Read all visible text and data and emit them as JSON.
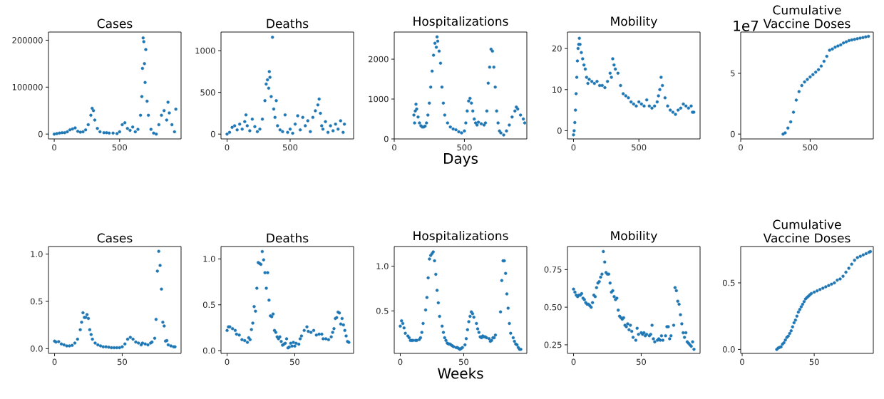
{
  "chart_data": [
    {
      "type": "scatter",
      "title": "Cases",
      "color": "#1f77b4",
      "marker": "circle",
      "xlim": [
        -44,
        970
      ],
      "ylim": [
        -10350,
        217350
      ],
      "xticks": [
        0,
        500
      ],
      "yticks": [
        0,
        100000,
        200000
      ],
      "x": [
        0,
        20,
        40,
        60,
        80,
        100,
        120,
        140,
        160,
        180,
        200,
        220,
        240,
        260,
        280,
        290,
        300,
        310,
        330,
        350,
        380,
        400,
        420,
        450,
        480,
        500,
        520,
        540,
        560,
        580,
        600,
        620,
        640,
        660,
        670,
        675,
        680,
        685,
        690,
        695,
        700,
        710,
        720,
        740,
        760,
        780,
        800,
        820,
        840,
        860,
        870,
        880,
        900,
        920,
        930
      ],
      "values": [
        0,
        1000,
        2000,
        3000,
        3000,
        5000,
        9000,
        11000,
        13000,
        6000,
        4000,
        5000,
        9000,
        20000,
        40000,
        55000,
        50000,
        30000,
        12000,
        5000,
        3000,
        3000,
        2000,
        2000,
        1000,
        5000,
        20000,
        24000,
        12000,
        8000,
        15000,
        5000,
        10000,
        40000,
        80000,
        140000,
        205000,
        197000,
        150000,
        110000,
        180000,
        70000,
        40000,
        10000,
        2000,
        0,
        20000,
        40000,
        50000,
        30000,
        68000,
        45000,
        20000,
        5000,
        53000
      ]
    },
    {
      "type": "scatter",
      "title": "Deaths",
      "color": "#1f77b4",
      "marker": "circle",
      "xlim": [
        -48,
        1003
      ],
      "ylim": [
        -58,
        1223
      ],
      "xticks": [
        0,
        500
      ],
      "yticks": [
        0,
        500,
        1000
      ],
      "x": [
        0,
        20,
        40,
        60,
        80,
        100,
        120,
        140,
        150,
        160,
        180,
        200,
        220,
        240,
        260,
        280,
        300,
        310,
        320,
        330,
        335,
        340,
        350,
        360,
        370,
        380,
        390,
        400,
        420,
        440,
        460,
        480,
        500,
        520,
        540,
        560,
        580,
        600,
        620,
        640,
        660,
        680,
        700,
        720,
        730,
        740,
        750,
        760,
        780,
        800,
        820,
        840,
        860,
        880,
        900,
        920,
        930
      ],
      "values": [
        0,
        20,
        80,
        100,
        50,
        120,
        60,
        150,
        230,
        100,
        40,
        180,
        90,
        30,
        60,
        180,
        400,
        600,
        650,
        550,
        750,
        680,
        450,
        1160,
        300,
        200,
        400,
        100,
        50,
        30,
        230,
        20,
        60,
        10,
        120,
        220,
        50,
        200,
        100,
        160,
        30,
        200,
        280,
        350,
        420,
        250,
        100,
        60,
        150,
        20,
        100,
        40,
        120,
        60,
        160,
        20,
        120
      ]
    },
    {
      "type": "scatter",
      "title": "Hospitalizations",
      "xlabel": "Days",
      "color": "#1f77b4",
      "marker": "circle",
      "xlim": [
        0,
        945
      ],
      "ylim": [
        0,
        2680
      ],
      "xticks": [
        0,
        500
      ],
      "yticks": [
        0,
        1000,
        2000
      ],
      "x": [
        140,
        145,
        150,
        155,
        160,
        170,
        180,
        190,
        200,
        210,
        220,
        230,
        240,
        250,
        260,
        270,
        280,
        290,
        300,
        305,
        310,
        320,
        330,
        340,
        350,
        360,
        380,
        400,
        420,
        440,
        460,
        480,
        500,
        510,
        520,
        530,
        540,
        550,
        560,
        570,
        580,
        590,
        600,
        620,
        640,
        650,
        660,
        670,
        680,
        690,
        700,
        710,
        720,
        730,
        740,
        750,
        760,
        780,
        800,
        820,
        840,
        860,
        870,
        880,
        900,
        920,
        930
      ],
      "values": [
        600,
        400,
        700,
        870,
        750,
        550,
        400,
        330,
        300,
        300,
        320,
        400,
        600,
        900,
        1300,
        1700,
        2100,
        2400,
        2300,
        2560,
        2450,
        2200,
        1900,
        1300,
        900,
        600,
        400,
        300,
        250,
        230,
        180,
        150,
        200,
        400,
        700,
        950,
        1020,
        900,
        700,
        500,
        400,
        350,
        420,
        380,
        350,
        400,
        700,
        1400,
        1800,
        2250,
        2200,
        1800,
        1300,
        700,
        400,
        200,
        150,
        100,
        200,
        350,
        550,
        700,
        800,
        750,
        600,
        500,
        400
      ]
    },
    {
      "type": "scatter",
      "title": "Mobility",
      "color": "#1f77b4",
      "marker": "circle",
      "xlim": [
        -46,
        968
      ],
      "ylim": [
        -2,
        24
      ],
      "xticks": [
        0,
        500
      ],
      "yticks": [
        0,
        10,
        20
      ],
      "x": [
        0,
        5,
        10,
        15,
        20,
        25,
        30,
        35,
        40,
        45,
        50,
        60,
        70,
        80,
        90,
        100,
        110,
        120,
        140,
        160,
        180,
        200,
        220,
        240,
        260,
        280,
        290,
        300,
        310,
        320,
        340,
        360,
        380,
        400,
        420,
        440,
        460,
        480,
        500,
        520,
        540,
        560,
        580,
        600,
        620,
        640,
        650,
        660,
        670,
        680,
        700,
        720,
        740,
        760,
        780,
        800,
        820,
        840,
        860,
        880,
        900,
        910,
        920
      ],
      "values": [
        -1,
        0,
        2,
        5,
        9,
        13,
        17,
        20,
        21,
        22.5,
        21,
        19,
        17.5,
        16,
        15,
        13,
        11.5,
        12.5,
        12,
        11.5,
        12,
        11,
        11,
        10.5,
        12,
        14,
        13,
        17.5,
        16,
        15,
        14,
        11,
        9,
        8.5,
        8,
        7,
        6.5,
        6,
        7,
        6.5,
        6,
        7.5,
        6,
        5.5,
        6,
        7,
        8.5,
        10,
        13,
        11,
        8,
        6,
        5,
        4.5,
        4,
        5,
        5.5,
        6.5,
        6,
        5.5,
        6,
        4.5,
        4.5
      ]
    },
    {
      "type": "scatter",
      "title": "Cumulative Vaccine Doses",
      "annotations": [
        "1e7"
      ],
      "color": "#1f77b4",
      "marker": "circle",
      "xlim": [
        0,
        955
      ],
      "ylim": [
        -0.4,
        8.4
      ],
      "xticks": [
        0,
        500
      ],
      "yticks": [
        0,
        5
      ],
      "x": [
        305,
        320,
        340,
        360,
        380,
        400,
        420,
        440,
        460,
        480,
        500,
        520,
        540,
        560,
        580,
        600,
        620,
        640,
        660,
        680,
        700,
        720,
        740,
        760,
        780,
        800,
        820,
        840,
        860,
        880,
        900,
        920
      ],
      "values": [
        0,
        0.1,
        0.5,
        1.0,
        1.8,
        2.8,
        3.5,
        4.0,
        4.3,
        4.5,
        4.7,
        4.9,
        5.1,
        5.3,
        5.6,
        6.0,
        6.4,
        6.9,
        7.0,
        7.15,
        7.25,
        7.35,
        7.5,
        7.6,
        7.7,
        7.75,
        7.8,
        7.85,
        7.9,
        7.95,
        8.0,
        8.05
      ]
    },
    {
      "type": "scatter",
      "title": "Cases",
      "color": "#1f77b4",
      "marker": "circle",
      "xlim": [
        -4.5,
        93.5
      ],
      "ylim": [
        -0.05,
        1.08
      ],
      "xticks": [
        0,
        50
      ],
      "yticks": [
        {
          "value": 0,
          "label": "0.0"
        },
        0.5,
        {
          "value": 1,
          "label": "1.0"
        }
      ],
      "x": [
        0,
        1,
        3,
        5,
        7,
        9,
        11,
        13,
        15,
        17,
        19,
        20,
        21,
        22,
        23,
        24,
        25,
        26,
        27,
        28,
        30,
        32,
        34,
        36,
        38,
        40,
        42,
        44,
        46,
        48,
        50,
        52,
        54,
        56,
        58,
        60,
        62,
        64,
        65,
        67,
        69,
        71,
        72,
        74,
        75,
        76,
        77,
        78,
        79,
        80,
        81,
        82,
        83,
        84,
        86,
        88,
        89
      ],
      "values": [
        0.08,
        0.07,
        0.075,
        0.05,
        0.04,
        0.03,
        0.03,
        0.035,
        0.06,
        0.1,
        0.2,
        0.28,
        0.38,
        0.33,
        0.33,
        0.36,
        0.32,
        0.2,
        0.15,
        0.1,
        0.06,
        0.04,
        0.03,
        0.02,
        0.02,
        0.015,
        0.01,
        0.01,
        0.01,
        0.01,
        0.02,
        0.05,
        0.1,
        0.12,
        0.1,
        0.07,
        0.06,
        0.04,
        0.06,
        0.05,
        0.04,
        0.06,
        0.07,
        0.11,
        0.31,
        0.82,
        1.03,
        0.88,
        0.63,
        0.28,
        0.24,
        0.08,
        0.085,
        0.04,
        0.03,
        0.02,
        0.02
      ]
    },
    {
      "type": "scatter",
      "title": "Deaths",
      "color": "#1f77b4",
      "marker": "circle",
      "xlim": [
        -4.5,
        93.5
      ],
      "ylim": [
        -0.03,
        1.135
      ],
      "xticks": [
        0,
        50
      ],
      "yticks": [
        {
          "value": 0,
          "label": "0.0"
        },
        0.5,
        {
          "value": 1,
          "label": "1.0"
        }
      ],
      "x": [
        0,
        1,
        2,
        4,
        6,
        7,
        9,
        11,
        13,
        15,
        16,
        17,
        18,
        19,
        20,
        21,
        22,
        23,
        24,
        25,
        26,
        27,
        28,
        29,
        30,
        31,
        32,
        33,
        34,
        35,
        36,
        37,
        38,
        39,
        40,
        41,
        42,
        43,
        44,
        45,
        46,
        47,
        48,
        49,
        50,
        51,
        53,
        54,
        55,
        57,
        59,
        60,
        62,
        64,
        66,
        68,
        70,
        71,
        73,
        75,
        77,
        78,
        79,
        80,
        81,
        82,
        83,
        84,
        85,
        86,
        87,
        88,
        89,
        90
      ],
      "values": [
        0.22,
        0.26,
        0.26,
        0.24,
        0.22,
        0.18,
        0.17,
        0.12,
        0.11,
        0.09,
        0.14,
        0.12,
        0.23,
        0.3,
        0.48,
        0.43,
        0.68,
        0.96,
        0.95,
        0.94,
        1.08,
        0.99,
        0.85,
        0.68,
        0.85,
        0.55,
        0.38,
        0.37,
        0.4,
        0.22,
        0.2,
        0.15,
        0.13,
        0.15,
        0.1,
        0.06,
        0.07,
        0.08,
        0.13,
        0.03,
        0.04,
        0.08,
        0.05,
        0.09,
        0.05,
        0.08,
        0.07,
        0.13,
        0.16,
        0.22,
        0.26,
        0.21,
        0.2,
        0.22,
        0.17,
        0.18,
        0.18,
        0.13,
        0.13,
        0.12,
        0.15,
        0.2,
        0.24,
        0.35,
        0.36,
        0.42,
        0.41,
        0.29,
        0.35,
        0.28,
        0.22,
        0.16,
        0.1,
        0.09
      ]
    },
    {
      "type": "scatter",
      "title": "Hospitalizations",
      "xlabel": "Weeks",
      "color": "#1f77b4",
      "marker": "circle",
      "xlim": [
        -4.75,
        99.75
      ],
      "ylim": [
        0.025,
        1.22
      ],
      "xticks": [
        0,
        50
      ],
      "yticks": [
        0.5,
        {
          "value": 1,
          "label": "1.0"
        }
      ],
      "x": [
        0,
        1,
        2,
        3,
        4,
        6,
        7,
        8,
        9,
        10,
        12,
        13,
        15,
        16,
        17,
        18,
        20,
        21,
        22,
        23,
        24,
        25,
        26,
        27,
        28,
        29,
        30,
        31,
        33,
        34,
        35,
        36,
        37,
        38,
        39,
        40,
        41,
        42,
        44,
        45,
        46,
        47,
        48,
        49,
        51,
        52,
        53,
        54,
        55,
        56,
        57,
        58,
        60,
        61,
        62,
        63,
        64,
        65,
        66,
        67,
        68,
        70,
        71,
        72,
        73,
        74,
        75,
        79,
        80,
        81,
        82,
        83,
        84,
        85,
        86,
        87,
        89,
        90,
        91,
        92,
        93,
        94,
        95
      ],
      "values": [
        0.33,
        0.39,
        0.36,
        0.31,
        0.25,
        0.22,
        0.2,
        0.17,
        0.17,
        0.17,
        0.17,
        0.17,
        0.18,
        0.2,
        0.26,
        0.36,
        0.51,
        0.65,
        0.87,
        1.08,
        1.12,
        1.14,
        1.16,
        1.06,
        0.91,
        0.73,
        0.59,
        0.44,
        0.33,
        0.26,
        0.2,
        0.17,
        0.14,
        0.13,
        0.13,
        0.12,
        0.11,
        0.1,
        0.09,
        0.09,
        0.08,
        0.07,
        0.08,
        0.09,
        0.12,
        0.19,
        0.29,
        0.38,
        0.44,
        0.49,
        0.47,
        0.43,
        0.36,
        0.3,
        0.26,
        0.21,
        0.2,
        0.22,
        0.21,
        0.21,
        0.2,
        0.19,
        0.16,
        0.17,
        0.2,
        0.2,
        0.23,
        0.49,
        0.84,
        1.06,
        1.06,
        0.92,
        0.69,
        0.53,
        0.36,
        0.25,
        0.2,
        0.16,
        0.13,
        0.12,
        0.09,
        0.07,
        0.07
      ]
    },
    {
      "type": "scatter",
      "title": "Mobility",
      "color": "#1f77b4",
      "marker": "circle",
      "xlim": [
        -4.5,
        93.5
      ],
      "ylim": [
        0.193,
        0.903
      ],
      "xticks": [
        0,
        50
      ],
      "yticks": [
        0.25,
        {
          "value": 0.5,
          "label": "0.50"
        },
        0.75
      ],
      "x": [
        0,
        1,
        2,
        3,
        4,
        5,
        6,
        7,
        8,
        9,
        10,
        11,
        12,
        13,
        14,
        15,
        16,
        17,
        18,
        19,
        20,
        21,
        22,
        23,
        24,
        25,
        26,
        27,
        28,
        29,
        30,
        31,
        32,
        33,
        34,
        35,
        36,
        37,
        38,
        39,
        40,
        41,
        42,
        43,
        44,
        46,
        47,
        48,
        50,
        51,
        52,
        53,
        54,
        56,
        57,
        58,
        59,
        60,
        62,
        63,
        64,
        65,
        66,
        68,
        69,
        70,
        71,
        72,
        74,
        75,
        76,
        77,
        78,
        79,
        80,
        81,
        82,
        83,
        84,
        85,
        86,
        87,
        88,
        89
      ],
      "values": [
        0.62,
        0.6,
        0.58,
        0.57,
        0.58,
        0.58,
        0.59,
        0.56,
        0.55,
        0.53,
        0.52,
        0.52,
        0.51,
        0.5,
        0.53,
        0.58,
        0.57,
        0.63,
        0.66,
        0.67,
        0.7,
        0.72,
        0.87,
        0.8,
        0.73,
        0.72,
        0.72,
        0.66,
        0.6,
        0.61,
        0.57,
        0.55,
        0.56,
        0.48,
        0.44,
        0.43,
        0.42,
        0.43,
        0.38,
        0.37,
        0.39,
        0.35,
        0.38,
        0.34,
        0.3,
        0.28,
        0.36,
        0.32,
        0.33,
        0.32,
        0.33,
        0.31,
        0.32,
        0.31,
        0.32,
        0.38,
        0.29,
        0.27,
        0.28,
        0.29,
        0.28,
        0.31,
        0.28,
        0.31,
        0.37,
        0.37,
        0.29,
        0.31,
        0.38,
        0.63,
        0.61,
        0.54,
        0.52,
        0.45,
        0.39,
        0.33,
        0.3,
        0.33,
        0.27,
        0.26,
        0.25,
        0.24,
        0.27,
        0.22
      ]
    },
    {
      "type": "scatter",
      "title": "Cumulative Vaccine Doses",
      "color": "#1f77b4",
      "marker": "circle",
      "xlim": [
        -1,
        91
      ],
      "ylim": [
        -0.03,
        0.773
      ],
      "xticks": [
        0,
        50
      ],
      "yticks": [
        {
          "value": 0,
          "label": "0.0"
        },
        0.5
      ],
      "x": [
        24,
        25,
        26,
        27,
        28,
        29,
        30,
        31,
        32,
        33,
        34,
        35,
        36,
        37,
        38,
        39,
        40,
        41,
        42,
        43,
        44,
        45,
        46,
        47,
        48,
        50,
        52,
        54,
        56,
        58,
        60,
        62,
        64,
        66,
        68,
        70,
        72,
        74,
        76,
        78,
        80,
        82,
        84,
        86,
        88,
        89
      ],
      "values": [
        0,
        0.01,
        0.015,
        0.02,
        0.04,
        0.05,
        0.07,
        0.09,
        0.1,
        0.12,
        0.14,
        0.17,
        0.2,
        0.22,
        0.25,
        0.28,
        0.3,
        0.32,
        0.34,
        0.36,
        0.38,
        0.39,
        0.4,
        0.41,
        0.42,
        0.43,
        0.44,
        0.45,
        0.46,
        0.47,
        0.48,
        0.49,
        0.5,
        0.52,
        0.53,
        0.55,
        0.58,
        0.61,
        0.64,
        0.67,
        0.69,
        0.7,
        0.71,
        0.72,
        0.73,
        0.735
      ]
    }
  ]
}
